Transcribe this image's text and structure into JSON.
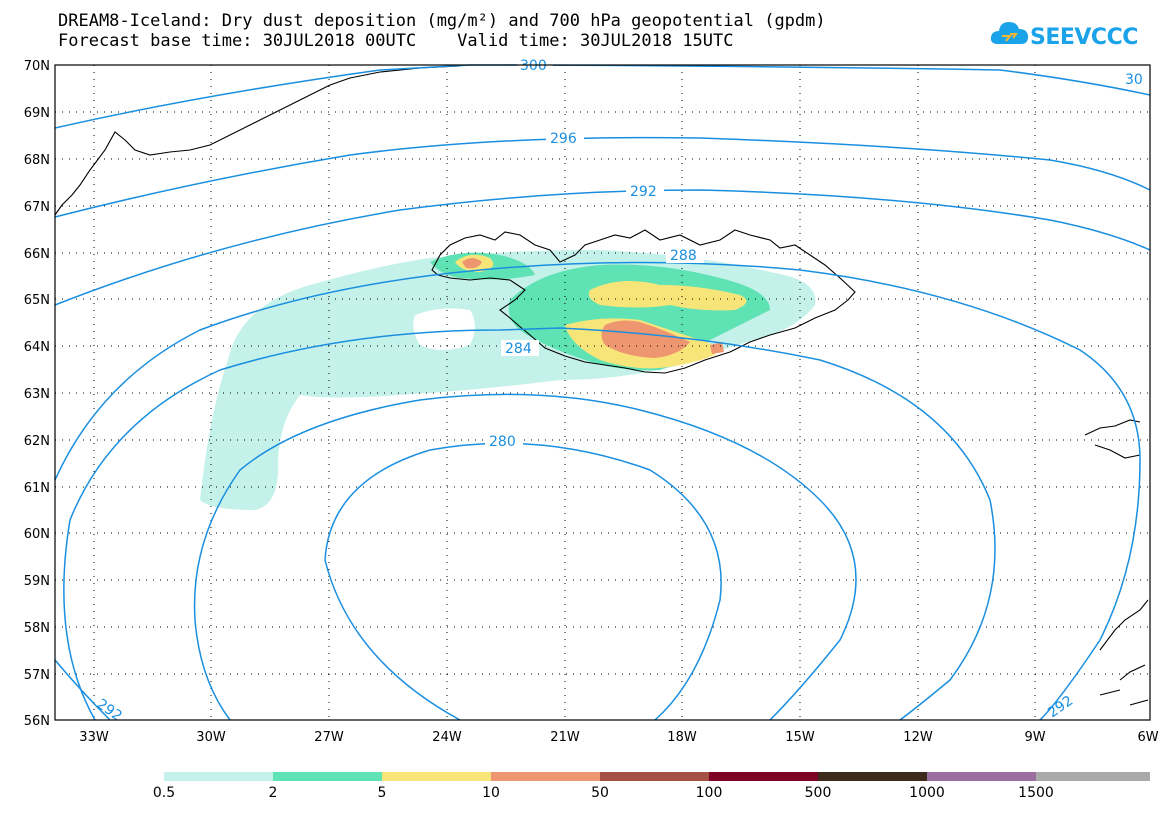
{
  "title": {
    "line1": "DREAM8-Iceland: Dry dust deposition (mg/m²) and 700 hPa geopotential (gpdm)",
    "line2": "Forecast base time: 30JUL2018 00UTC    Valid time: 30JUL2018 15UTC"
  },
  "logo": {
    "text": "SEEVCCC",
    "icon": "cloud-icon",
    "color": "#1aa3e8"
  },
  "axes": {
    "lat_labels": [
      "70N",
      "69N",
      "68N",
      "67N",
      "66N",
      "65N",
      "64N",
      "63N",
      "62N",
      "61N",
      "60N",
      "59N",
      "58N",
      "57N",
      "56N"
    ],
    "lon_labels": [
      "33W",
      "30W",
      "27W",
      "24W",
      "21W",
      "18W",
      "15W",
      "12W",
      "9W",
      "6W"
    ]
  },
  "contours": {
    "color": "#1a8fe0",
    "labels": [
      "300",
      "30",
      "296",
      "292",
      "288",
      "284",
      "280",
      "292",
      "292"
    ]
  },
  "legend": {
    "colors": [
      "#c4f1ea",
      "#5fe2b4",
      "#f8e57a",
      "#ed9670",
      "#a45144",
      "#7d0025",
      "#3d2a1a",
      "#9a6f9f",
      "#aaaaaa"
    ],
    "labels": [
      "0.5",
      "2",
      "5",
      "10",
      "50",
      "100",
      "500",
      "1000",
      "1500"
    ]
  }
}
